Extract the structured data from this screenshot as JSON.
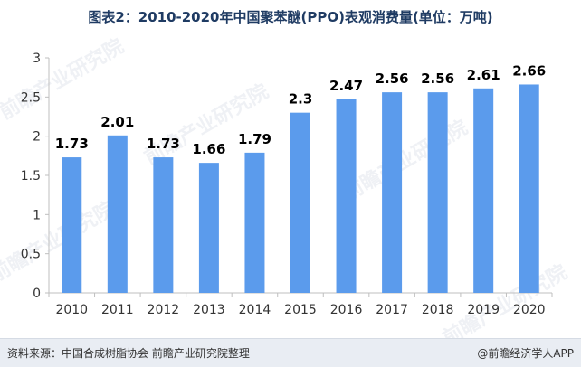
{
  "chart_data": {
    "type": "bar",
    "title": "图表2：2010-2020年中国聚苯醚(PPO)表观消费量(单位：万吨)",
    "categories": [
      "2010",
      "2011",
      "2012",
      "2013",
      "2014",
      "2015",
      "2016",
      "2017",
      "2018",
      "2019",
      "2020"
    ],
    "values": [
      1.73,
      2.01,
      1.73,
      1.66,
      1.79,
      2.3,
      2.47,
      2.56,
      2.56,
      2.61,
      2.66
    ],
    "value_labels": [
      "1.73",
      "2.01",
      "1.73",
      "1.66",
      "1.79",
      "2.3",
      "2.47",
      "2.56",
      "2.56",
      "2.61",
      "2.66"
    ],
    "ylim": [
      0,
      3
    ],
    "yticks": [
      "0",
      "0.5",
      "1",
      "1.5",
      "2",
      "2.5",
      "3"
    ],
    "ytick_values": [
      0,
      0.5,
      1,
      1.5,
      2,
      2.5,
      3
    ],
    "bar_color": "#5b9bec",
    "grid": false,
    "legend": false
  },
  "footer": {
    "source": "资料来源：中国合成树脂协会 前瞻产业研究院整理",
    "brand": "@前瞻经济学人APP"
  },
  "watermark": "前瞻产业研究院"
}
